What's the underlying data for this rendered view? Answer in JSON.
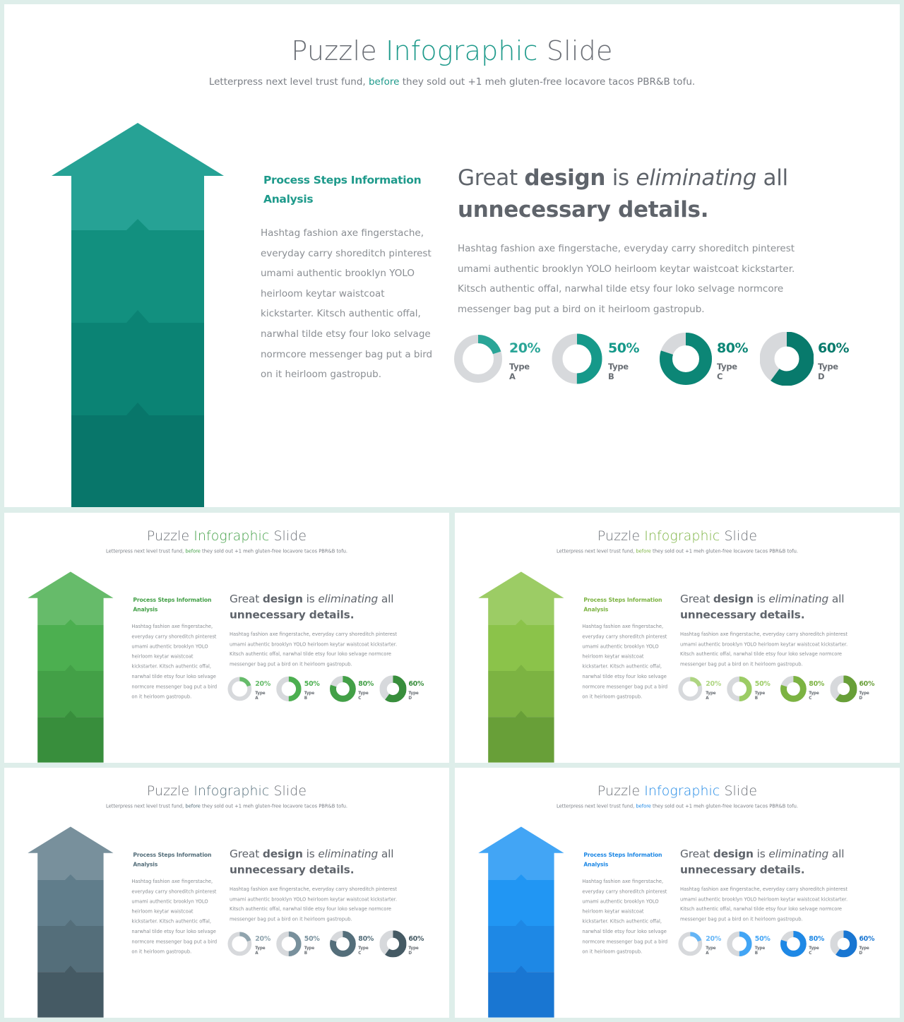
{
  "slides": [
    {
      "title_part1": "Puzzle ",
      "title_highlight": "Infographic",
      "title_part3": " Slide",
      "subtitle_part1": "Letterpress next level trust fund, ",
      "subtitle_highlight": "before",
      "subtitle_part3": " they sold out +1 meh gluten-free locavore tacos PBR&B tofu.",
      "side_heading": "Process Steps Information Analysis",
      "side_body": "Hashtag fashion axe fingerstache, everyday carry shoreditch pinterest umami authentic brooklyn YOLO heirloom keytar waistcoat kickstarter. Kitsch authentic offal, narwhal tilde etsy four loko selvage normcore messenger bag put a bird on it heirloom gastropub.",
      "quote": {
        "p1": "Great ",
        "p2": "design",
        "p3": " is ",
        "p4": "eliminating",
        "p5": " all ",
        "p6": "unnecessary details."
      },
      "main_body": "Hashtag fashion axe fingerstache, everyday carry shoreditch pinterest umami authentic brooklyn YOLO heirloom keytar waistcoat kickstarter. Kitsch authentic offal, narwhal tilde etsy four loko selvage normcore messenger bag put a bird on it heirloom gastropub.",
      "donuts": [
        {
          "value": 20,
          "label": "20%",
          "type": "Type A"
        },
        {
          "value": 50,
          "label": "50%",
          "type": "Type B"
        },
        {
          "value": 80,
          "label": "80%",
          "type": "Type C"
        },
        {
          "value": 60,
          "label": "60%",
          "type": "Type D"
        }
      ]
    },
    {
      "title_part1": "Puzzle ",
      "title_highlight": "Infographic",
      "title_part3": " Slide",
      "subtitle_part1": "Letterpress next level trust fund, ",
      "subtitle_highlight": "before",
      "subtitle_part3": " they sold out +1 meh gluten-free locavore tacos PBR&B tofu.",
      "side_heading": "Process Steps Information Analysis",
      "side_body": "Hashtag fashion axe fingerstache, everyday carry shoreditch pinterest umami authentic brooklyn YOLO heirloom keytar waistcoat kickstarter. Kitsch authentic offal, narwhal tilde etsy four loko selvage normcore messenger bag put a bird on it heirloom gastropub.",
      "quote": {
        "p1": "Great ",
        "p2": "design",
        "p3": " is ",
        "p4": "eliminating",
        "p5": " all ",
        "p6": "unnecessary details."
      },
      "main_body": "Hashtag fashion axe fingerstache, everyday carry shoreditch pinterest umami authentic brooklyn YOLO heirloom keytar waistcoat kickstarter. Kitsch authentic offal, narwhal tilde etsy four loko selvage normcore messenger bag put a bird on it heirloom gastropub.",
      "donuts": [
        {
          "value": 20,
          "label": "20%",
          "type": "Type A"
        },
        {
          "value": 50,
          "label": "50%",
          "type": "Type B"
        },
        {
          "value": 80,
          "label": "80%",
          "type": "Type C"
        },
        {
          "value": 60,
          "label": "60%",
          "type": "Type D"
        }
      ]
    },
    {
      "title_part1": "Puzzle ",
      "title_highlight": "Infographic",
      "title_part3": " Slide",
      "subtitle_part1": "Letterpress next level trust fund, ",
      "subtitle_highlight": "before",
      "subtitle_part3": " they sold out +1 meh gluten-free locavore tacos PBR&B tofu.",
      "side_heading": "Process Steps Information Analysis",
      "side_body": "Hashtag fashion axe fingerstache, everyday carry shoreditch pinterest umami authentic brooklyn YOLO heirloom keytar waistcoat kickstarter. Kitsch authentic offal, narwhal tilde etsy four loko selvage normcore messenger bag put a bird on it heirloom gastropub.",
      "quote": {
        "p1": "Great ",
        "p2": "design",
        "p3": " is ",
        "p4": "eliminating",
        "p5": " all ",
        "p6": "unnecessary details."
      },
      "main_body": "Hashtag fashion axe fingerstache, everyday carry shoreditch pinterest umami authentic brooklyn YOLO heirloom keytar waistcoat kickstarter. Kitsch authentic offal, narwhal tilde etsy four loko selvage normcore messenger bag put a bird on it heirloom gastropub.",
      "donuts": [
        {
          "value": 20,
          "label": "20%",
          "type": "Type A"
        },
        {
          "value": 50,
          "label": "50%",
          "type": "Type B"
        },
        {
          "value": 80,
          "label": "80%",
          "type": "Type C"
        },
        {
          "value": 60,
          "label": "60%",
          "type": "Type D"
        }
      ]
    },
    {
      "title_part1": "Puzzle ",
      "title_highlight": "Infographic",
      "title_part3": " Slide",
      "subtitle_part1": "Letterpress next level trust fund, ",
      "subtitle_highlight": "before",
      "subtitle_part3": " they sold out +1 meh gluten-free locavore tacos PBR&B tofu.",
      "side_heading": "Process Steps Information Analysis",
      "side_body": "Hashtag fashion axe fingerstache, everyday carry shoreditch pinterest umami authentic brooklyn YOLO heirloom keytar waistcoat kickstarter. Kitsch authentic offal, narwhal tilde etsy four loko selvage normcore messenger bag put a bird on it heirloom gastropub.",
      "quote": {
        "p1": "Great ",
        "p2": "design",
        "p3": " is ",
        "p4": "eliminating",
        "p5": " all ",
        "p6": "unnecessary details."
      },
      "main_body": "Hashtag fashion axe fingerstache, everyday carry shoreditch pinterest umami authentic brooklyn YOLO heirloom keytar waistcoat kickstarter. Kitsch authentic offal, narwhal tilde etsy four loko selvage normcore messenger bag put a bird on it heirloom gastropub.",
      "donuts": [
        {
          "value": 20,
          "label": "20%",
          "type": "Type A"
        },
        {
          "value": 50,
          "label": "50%",
          "type": "Type B"
        },
        {
          "value": 80,
          "label": "80%",
          "type": "Type C"
        },
        {
          "value": 60,
          "label": "60%",
          "type": "Type D"
        }
      ]
    },
    {
      "title_part1": "Puzzle ",
      "title_highlight": "Infographic",
      "title_part3": " Slide",
      "subtitle_part1": "Letterpress next level trust fund, ",
      "subtitle_highlight": "before",
      "subtitle_part3": " they sold out +1 meh gluten-free locavore tacos PBR&B tofu.",
      "side_heading": "Process Steps Information Analysis",
      "side_body": "Hashtag fashion axe fingerstache, everyday carry shoreditch pinterest umami authentic brooklyn YOLO heirloom keytar waistcoat kickstarter. Kitsch authentic offal, narwhal tilde etsy four loko selvage normcore messenger bag put a bird on it heirloom gastropub.",
      "quote": {
        "p1": "Great ",
        "p2": "design",
        "p3": " is ",
        "p4": "eliminating",
        "p5": " all ",
        "p6": "unnecessary details."
      },
      "main_body": "Hashtag fashion axe fingerstache, everyday carry shoreditch pinterest umami authentic brooklyn YOLO heirloom keytar waistcoat kickstarter. Kitsch authentic offal, narwhal tilde etsy four loko selvage normcore messenger bag put a bird on it heirloom gastropub.",
      "donuts": [
        {
          "value": 20,
          "label": "20%",
          "type": "Type A"
        },
        {
          "value": 50,
          "label": "50%",
          "type": "Type B"
        },
        {
          "value": 80,
          "label": "80%",
          "type": "Type C"
        },
        {
          "value": 60,
          "label": "60%",
          "type": "Type D"
        }
      ]
    }
  ],
  "themes": [
    {
      "accent": "#1e9a8b",
      "arrow": [
        "#26a295",
        "#12907f",
        "#0b8374",
        "#08766a"
      ],
      "donut": [
        "#2aa597",
        "#16998a",
        "#0c8676",
        "#087a6c"
      ],
      "track": "#d7d9dc"
    },
    {
      "accent": "#43a047",
      "arrow": [
        "#66bb6a",
        "#4caf50",
        "#43a047",
        "#388e3c"
      ],
      "donut": [
        "#66bb6a",
        "#4caf50",
        "#43a047",
        "#388e3c"
      ],
      "track": "#d7d9dc"
    },
    {
      "accent": "#7cb342",
      "arrow": [
        "#9ccc65",
        "#8bc34a",
        "#7cb342",
        "#689f38"
      ],
      "donut": [
        "#aed581",
        "#9ccc65",
        "#7cb342",
        "#689f38"
      ],
      "track": "#d7d9dc"
    },
    {
      "accent": "#546e7a",
      "arrow": [
        "#78909c",
        "#607d8b",
        "#546e7a",
        "#455a64"
      ],
      "donut": [
        "#90a4ae",
        "#78909c",
        "#546e7a",
        "#455a64"
      ],
      "track": "#d7d9dc"
    },
    {
      "accent": "#1e88e5",
      "arrow": [
        "#42a5f5",
        "#2196f3",
        "#1e88e5",
        "#1976d2"
      ],
      "donut": [
        "#64b5f6",
        "#42a5f5",
        "#1e88e5",
        "#1976d2"
      ],
      "track": "#d7d9dc"
    }
  ],
  "colors": {
    "page_bg": "#deeeea",
    "slide_bg": "#ffffff",
    "title_gray": "#6b6f76",
    "body_gray": "#8a8e93",
    "heading_gray": "#5f646b"
  }
}
